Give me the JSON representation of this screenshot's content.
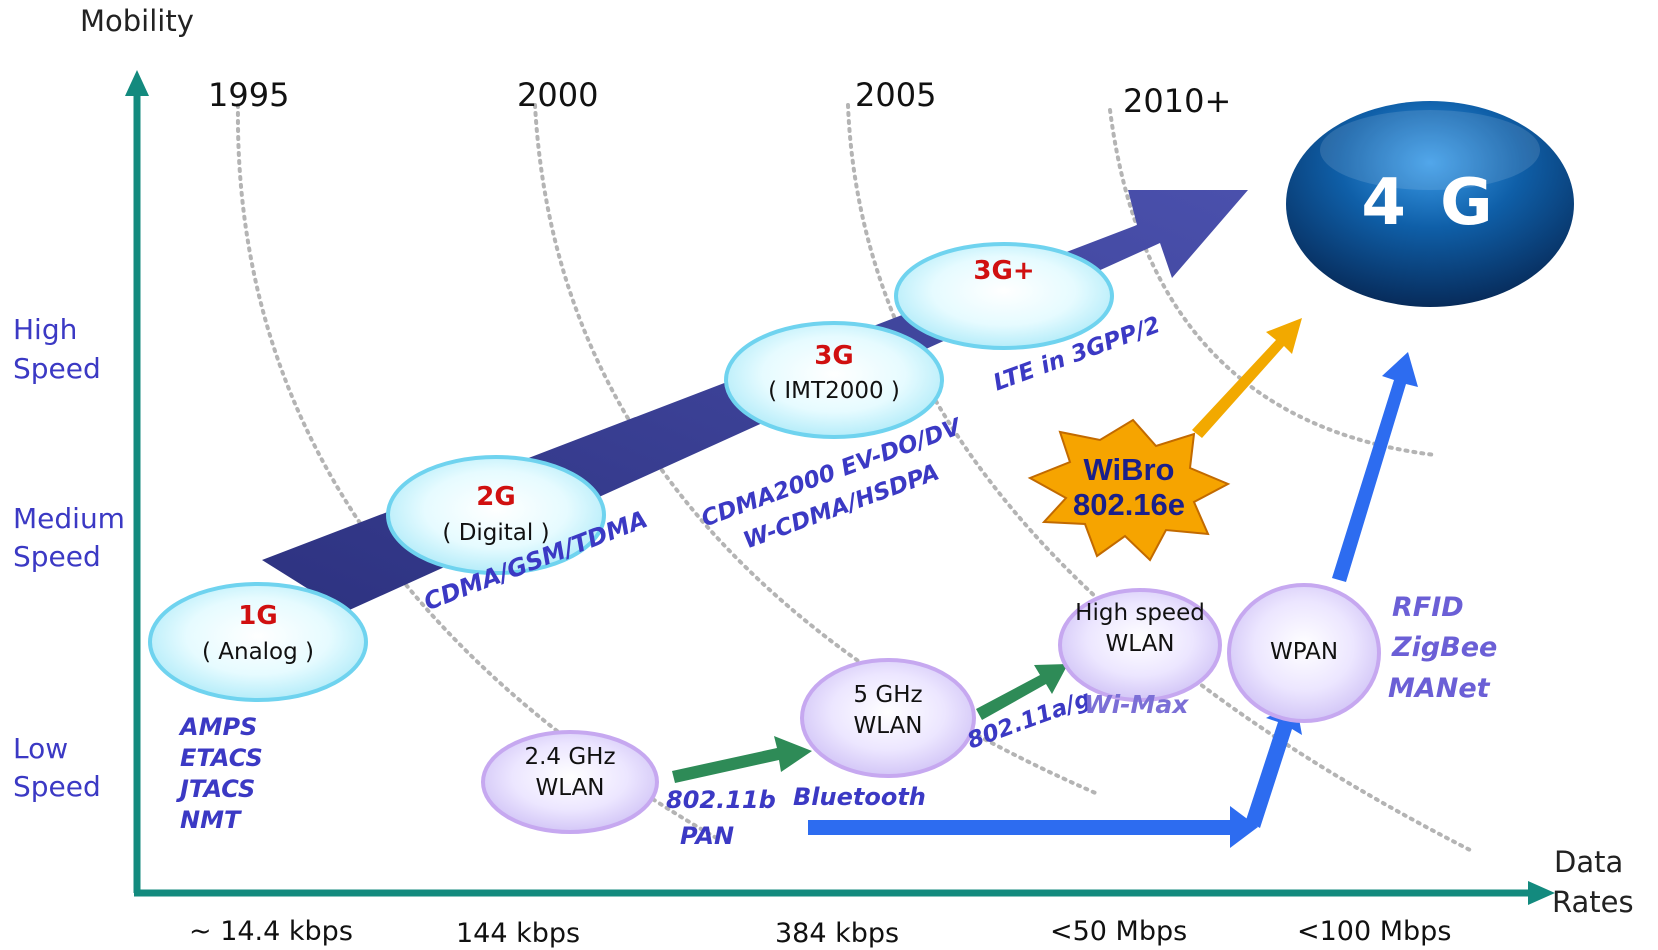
{
  "axes": {
    "y_title": "Mobility",
    "x_title_line1": "Data",
    "x_title_line2": "Rates"
  },
  "years": [
    "1995",
    "2000",
    "2005",
    "2010+"
  ],
  "data_rates": [
    "~ 14.4 kbps",
    "144 kbps",
    "384 kbps",
    "<50 Mbps",
    "<100 Mbps"
  ],
  "speed_levels": [
    {
      "line1": "High",
      "line2": "Speed"
    },
    {
      "line1": "Medium",
      "line2": "Speed"
    },
    {
      "line1": "Low",
      "line2": "Speed"
    }
  ],
  "generations": [
    {
      "gen": "1G",
      "sub": "( Analog )"
    },
    {
      "gen": "2G",
      "sub": "( Digital )"
    },
    {
      "gen": "3G",
      "sub": "( IMT2000 )"
    },
    {
      "gen": "3G+",
      "sub": ""
    }
  ],
  "cellular_tech": {
    "first_gen": [
      "AMPS",
      "ETACS",
      "JTACS",
      "NMT"
    ],
    "second_gen": "CDMA/GSM/TDMA",
    "third_gen_line1": "CDMA2000  EV-DO/DV",
    "third_gen_line2": "W-CDMA/HSDPA",
    "third_gen_plus": "LTE in 3GPP/2"
  },
  "wireless_nodes": {
    "wlan_24": {
      "line1": "2.4 GHz",
      "line2": "WLAN"
    },
    "wlan_5": {
      "line1": "5 GHz",
      "line2": "WLAN"
    },
    "wlan_high": {
      "line1": "High speed",
      "line2": "WLAN"
    },
    "wpan": "WPAN"
  },
  "wireless_labels": {
    "std_80211b": "802.11b",
    "pan": "PAN",
    "bluetooth": "Bluetooth",
    "std_80211ag": "802.11a/g",
    "wimax": "Wi-Max",
    "rfid": "RFID",
    "zigbee": "ZigBee",
    "manet": "MANet"
  },
  "wibro": {
    "line1": "WiBro",
    "line2": "802.16e"
  },
  "target": "4 G",
  "colors": {
    "axis": "#138a7e",
    "main_arrow": "#3a3f93",
    "green_arrow": "#2e8b57",
    "blue_arrow": "#2d6cf0",
    "orange_arrow": "#f2a900",
    "label_blue": "#3b39c4",
    "gen_red": "#d01010",
    "cyan_bubble": "#c9f1fb",
    "lavender_bubble": "#dcd4f8",
    "fourg_dark": "#0a3f7a",
    "wibro_fill": "#f6a400"
  }
}
